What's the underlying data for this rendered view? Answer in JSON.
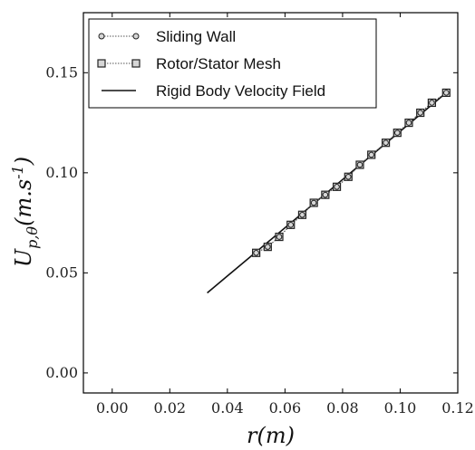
{
  "chart_data": {
    "type": "line",
    "xlabel": "r(m)",
    "ylabel": "U_{p,θ}(m.s^{-1})",
    "xlim": [
      -0.01,
      0.12
    ],
    "ylim": [
      -0.01,
      0.18
    ],
    "xticks": [
      0.0,
      0.02,
      0.04,
      0.06,
      0.08,
      0.1,
      0.12
    ],
    "xtick_labels": [
      "0.00",
      "0.02",
      "0.04",
      "0.06",
      "0.08",
      "0.10",
      "0.12"
    ],
    "yticks": [
      0.0,
      0.05,
      0.1,
      0.15
    ],
    "ytick_labels": [
      "0.00",
      "0.05",
      "0.10",
      "0.15"
    ],
    "grid": false,
    "legend_position": "top-left",
    "series": [
      {
        "name": "Sliding Wall",
        "marker": "circle",
        "line": "dotted",
        "x": [
          0.05,
          0.054,
          0.058,
          0.062,
          0.066,
          0.07,
          0.074,
          0.078,
          0.082,
          0.086,
          0.09,
          0.095,
          0.099,
          0.103,
          0.107,
          0.111,
          0.116
        ],
        "y": [
          0.06,
          0.063,
          0.068,
          0.074,
          0.079,
          0.085,
          0.089,
          0.093,
          0.098,
          0.104,
          0.109,
          0.115,
          0.12,
          0.125,
          0.13,
          0.135,
          0.14
        ]
      },
      {
        "name": "Rotor/Stator Mesh",
        "marker": "square",
        "line": "dotted",
        "x": [
          0.05,
          0.054,
          0.058,
          0.062,
          0.066,
          0.07,
          0.074,
          0.078,
          0.082,
          0.086,
          0.09,
          0.095,
          0.099,
          0.103,
          0.107,
          0.111,
          0.116
        ],
        "y": [
          0.06,
          0.063,
          0.068,
          0.074,
          0.079,
          0.085,
          0.089,
          0.093,
          0.098,
          0.104,
          0.109,
          0.115,
          0.12,
          0.125,
          0.13,
          0.135,
          0.14
        ]
      },
      {
        "name": "Rigid Body Velocity Field",
        "marker": "none",
        "line": "solid",
        "x": [
          0.033,
          0.116
        ],
        "y": [
          0.04,
          0.14
        ]
      }
    ]
  },
  "colors": {
    "line": "#111111",
    "marker_fill": "#d6d6d6",
    "marker_edge": "#222222"
  }
}
